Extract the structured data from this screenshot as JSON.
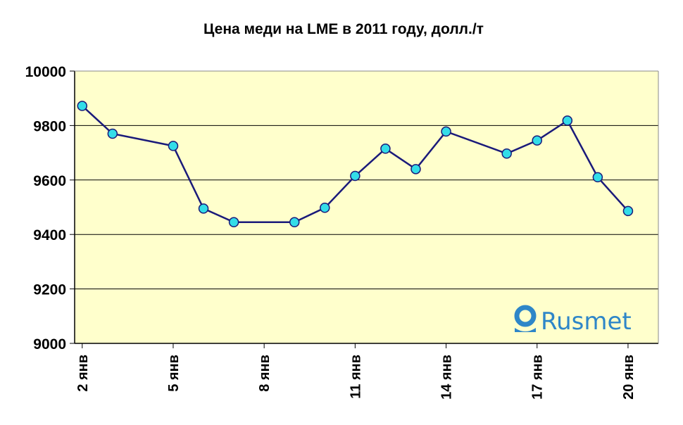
{
  "chart_data": {
    "type": "line",
    "title": "Цена меди на LME в 2011 году, долл./т",
    "xlabel": "",
    "ylabel": "",
    "x_day_ticks": [
      {
        "day": 2,
        "label": "2 янв"
      },
      {
        "day": 5,
        "label": "5 янв"
      },
      {
        "day": 8,
        "label": "8 янв"
      },
      {
        "day": 11,
        "label": "11 янв"
      },
      {
        "day": 14,
        "label": "14 янв"
      },
      {
        "day": 17,
        "label": "17 янв"
      },
      {
        "day": 20,
        "label": "20 янв"
      }
    ],
    "xlim": [
      1.75,
      21
    ],
    "ylim": [
      9000,
      10000
    ],
    "yticks": [
      9000,
      9200,
      9400,
      9600,
      9800,
      10000
    ],
    "grid": true,
    "series": [
      {
        "points": [
          {
            "x": 2,
            "y": 9872
          },
          {
            "x": 3,
            "y": 9770
          },
          {
            "x": 5,
            "y": 9725
          },
          {
            "x": 6,
            "y": 9495
          },
          {
            "x": 7,
            "y": 9445
          },
          {
            "x": 9,
            "y": 9445
          },
          {
            "x": 10,
            "y": 9498
          },
          {
            "x": 11,
            "y": 9615
          },
          {
            "x": 12,
            "y": 9715
          },
          {
            "x": 13,
            "y": 9640
          },
          {
            "x": 14,
            "y": 9778
          },
          {
            "x": 16,
            "y": 9697
          },
          {
            "x": 17,
            "y": 9745
          },
          {
            "x": 18,
            "y": 9818
          },
          {
            "x": 19,
            "y": 9610
          },
          {
            "x": 20,
            "y": 9486
          }
        ]
      }
    ],
    "colors": {
      "plot_background": "#ffffcc",
      "line": "#1a1a7a",
      "marker_fill": "#33dde8",
      "marker_stroke": "#1a1a7a",
      "grid": "#000000"
    }
  },
  "watermark": {
    "text": "Rusmet",
    "color": "#2e86c8"
  }
}
